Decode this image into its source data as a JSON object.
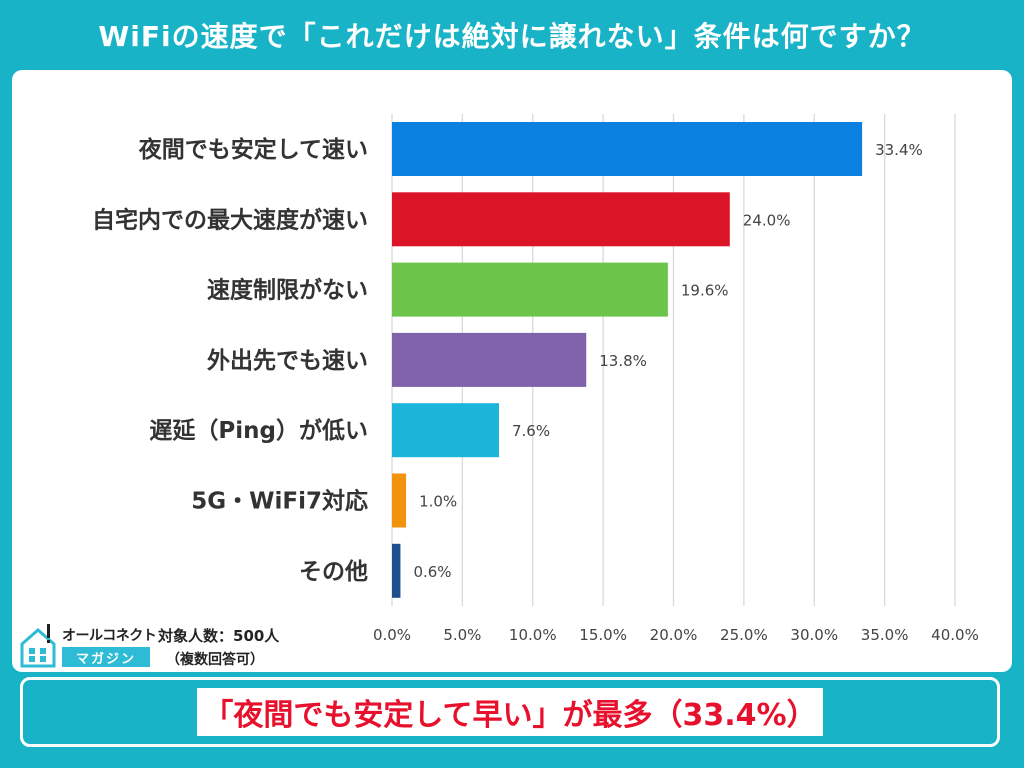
{
  "title": "WiFiの速度で「これだけは絶対に譲れない」条件は何ですか？",
  "chart_data": {
    "type": "bar",
    "orientation": "horizontal",
    "title": "",
    "xlabel": "",
    "ylabel": "",
    "categories": [
      "夜間でも安定して速い",
      "自宅内での最大速度が速い",
      "速度制限がない",
      "外出先でも速い",
      "遅延（Ping）が低い",
      "5G・WiFi7対応",
      "その他"
    ],
    "values": [
      33.4,
      24.0,
      19.6,
      13.8,
      7.6,
      1.0,
      0.6
    ],
    "value_labels": [
      "33.4%",
      "24.0%",
      "19.6%",
      "13.8%",
      "7.6%",
      "1.0%",
      "0.6%"
    ],
    "colors": [
      "#0a80e0",
      "#dc1428",
      "#6cc54a",
      "#8062ab",
      "#1ab5d8",
      "#f3920c",
      "#1f4e8c"
    ],
    "xlim": [
      0,
      40
    ],
    "ticks": [
      0,
      5,
      10,
      15,
      20,
      25,
      30,
      35,
      40
    ],
    "tick_labels": [
      "0.0%",
      "5.0%",
      "10.0%",
      "15.0%",
      "20.0%",
      "25.0%",
      "30.0%",
      "35.0%",
      "40.0%"
    ],
    "grid": true,
    "grid_color": "#d9d9d9"
  },
  "logo": {
    "name": "オールコネクト",
    "sub": "マガジン"
  },
  "sample": {
    "size": "対象人数：500人",
    "note": "（複数回答可）"
  },
  "banner": {
    "text": "「夜間でも安定して早い」が最多（33.4%）"
  },
  "colors": {
    "background": "#19b3c8",
    "panel": "#ffffff",
    "banner_text": "#e8112d"
  }
}
